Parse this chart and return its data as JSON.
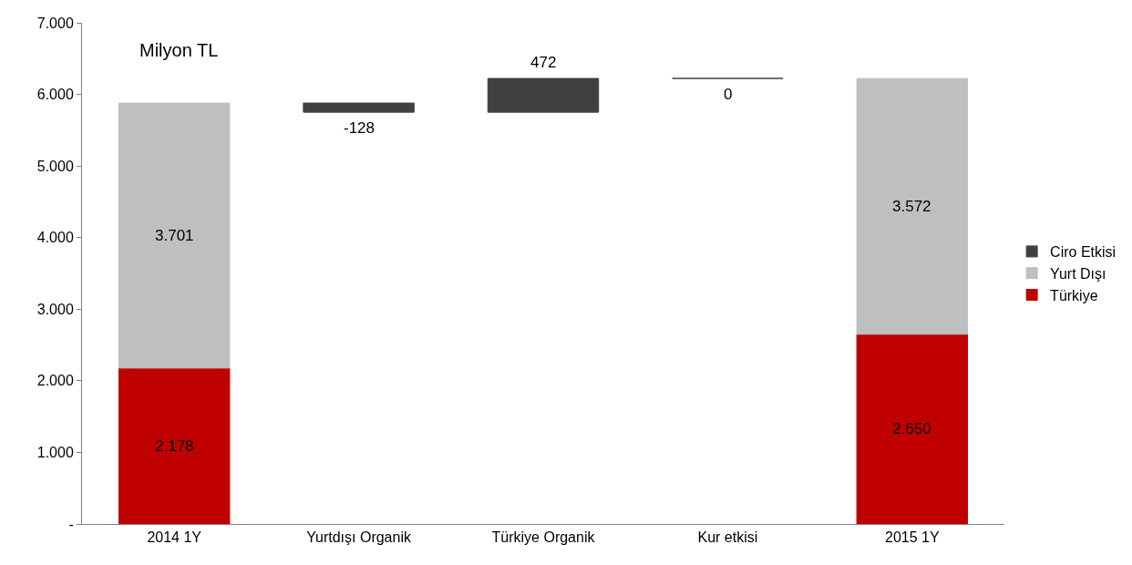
{
  "chart_data": {
    "type": "bar",
    "stacked": true,
    "categories": [
      "2014 1Y",
      "Yurtdışı Organik",
      "Türkiye Organik",
      "Kur etkisi",
      "2015 1Y"
    ],
    "series": [
      {
        "name": "Türkiye",
        "color": "#c00000",
        "values": [
          2178,
          null,
          null,
          null,
          2650
        ],
        "value_labels": [
          "2.178",
          null,
          null,
          null,
          "2.650"
        ]
      },
      {
        "name": "Yurt Dışı",
        "color": "#bfbfbf",
        "values": [
          3701,
          null,
          null,
          null,
          3572
        ],
        "value_labels": [
          "3.701",
          null,
          null,
          null,
          "3.572"
        ]
      },
      {
        "name": "Ciro Etkisi",
        "color": "#404040",
        "values": [
          null,
          -128,
          472,
          0,
          null
        ],
        "base": [
          null,
          5879,
          5751,
          6223,
          null
        ],
        "value_labels": [
          null,
          "-128",
          "472",
          "0",
          null
        ]
      }
    ],
    "ylim": [
      0,
      7000
    ],
    "yticks": [
      {
        "value": 0,
        "label": "-"
      },
      {
        "value": 1000,
        "label": "1.000"
      },
      {
        "value": 2000,
        "label": "2.000"
      },
      {
        "value": 3000,
        "label": "3.000"
      },
      {
        "value": 4000,
        "label": "4.000"
      },
      {
        "value": 5000,
        "label": "5.000"
      },
      {
        "value": 6000,
        "label": "6.000"
      },
      {
        "value": 7000,
        "label": "7.000"
      }
    ],
    "annotations": [
      "Milyon TL"
    ],
    "legend": "right"
  }
}
